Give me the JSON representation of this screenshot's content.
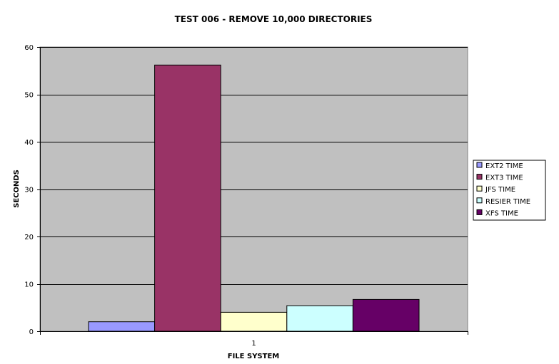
{
  "chart_data": {
    "type": "bar",
    "title": "TEST 006 - REMOVE 10,000 DIRECTORIES",
    "xlabel": "FILE SYSTEM",
    "ylabel": "SECONDS",
    "categories": [
      "1"
    ],
    "ylim": [
      0,
      60
    ],
    "yticks": [
      0,
      10,
      20,
      30,
      40,
      50,
      60
    ],
    "grid": true,
    "legend_position": "right",
    "plot_background": "#c0c0c0",
    "series": [
      {
        "name": "EXT2 TIME",
        "values": [
          2.0
        ],
        "color": "#9999ff"
      },
      {
        "name": "EXT3 TIME",
        "values": [
          56.2
        ],
        "color": "#993366"
      },
      {
        "name": "JFS TIME",
        "values": [
          4.0
        ],
        "color": "#ffffcc"
      },
      {
        "name": "RESIER TIME",
        "values": [
          5.4
        ],
        "color": "#ccffff"
      },
      {
        "name": "XFS TIME",
        "values": [
          6.7
        ],
        "color": "#660066"
      }
    ]
  }
}
